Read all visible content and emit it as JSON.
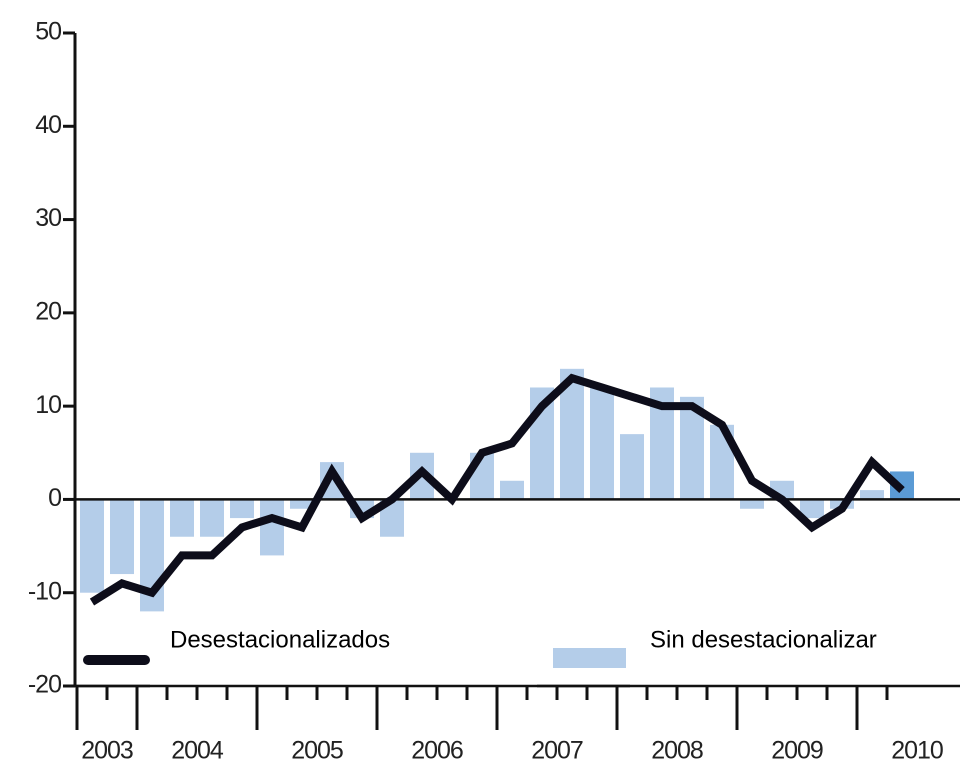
{
  "chart_data": {
    "type": "bar-line",
    "categories": [
      null,
      null,
      null,
      null,
      null,
      null,
      null,
      null,
      null,
      null,
      null,
      null,
      null,
      null,
      null,
      null,
      null,
      null,
      null,
      null,
      null,
      null,
      null,
      null,
      null,
      null,
      null,
      null
    ],
    "years": [
      "2003",
      "2004",
      "2005",
      "2006",
      "2007",
      "2008",
      "2009",
      "2010"
    ],
    "series": [
      {
        "name": "Desestacionalizados",
        "kind": "line",
        "color": "#0d0d1a",
        "values": [
          -11,
          -9,
          -10,
          -6,
          -6,
          -3,
          -2,
          -3,
          3,
          -2,
          0,
          3,
          0,
          5,
          6,
          10,
          13,
          12,
          11,
          10,
          10,
          8,
          2,
          0,
          -3,
          -1,
          4,
          1
        ]
      },
      {
        "name": "Sin desestacionalizar",
        "kind": "bar",
        "color": "#b4cde9",
        "last_color": "#5b9bd5",
        "values": [
          -10,
          -8,
          -12,
          -4,
          -4,
          -2,
          -6,
          -1,
          4,
          -2,
          -4,
          5,
          0,
          5,
          2,
          12,
          14,
          12,
          7,
          12,
          11,
          8,
          -1,
          2,
          -2,
          -1,
          1,
          3
        ]
      }
    ],
    "ylim": [
      -20,
      50
    ],
    "yticks": [
      -20,
      -10,
      0,
      10,
      20,
      30,
      40,
      50
    ]
  }
}
